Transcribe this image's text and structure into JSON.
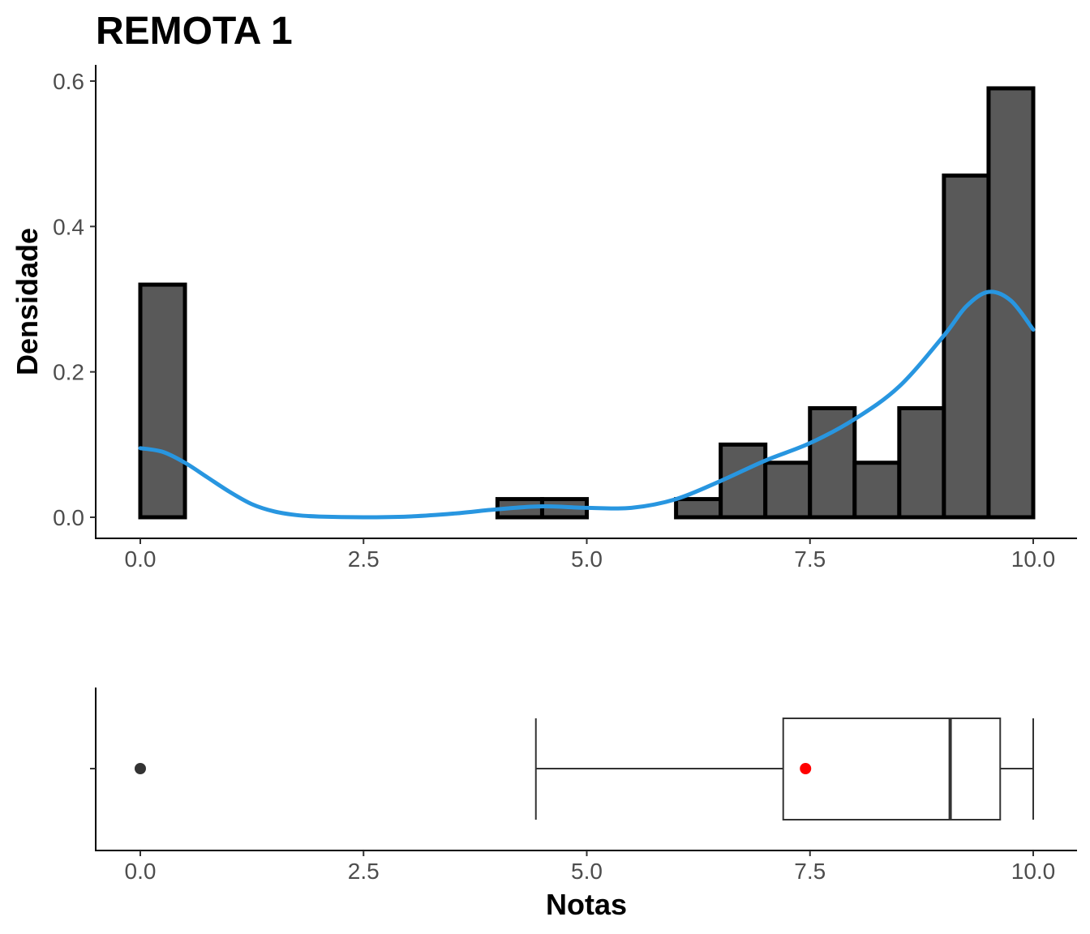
{
  "chart_data": [
    {
      "type": "histogram",
      "title": "REMOTA 1",
      "xlabel": "",
      "ylabel": "Densidade",
      "xlim": [
        -0.25,
        10.25
      ],
      "ylim": [
        0,
        0.62
      ],
      "x_ticks": [
        0,
        2.5,
        5,
        7.5,
        10
      ],
      "x_tick_labels": [
        "0.0",
        "2.5",
        "5.0",
        "7.5",
        "10.0"
      ],
      "y_ticks": [
        0,
        0.2,
        0.4,
        0.6
      ],
      "y_tick_labels": [
        "0.0",
        "0.2",
        "0.4",
        "0.6"
      ],
      "bin_width": 0.5,
      "bin_starts": [
        0,
        0.5,
        1,
        1.5,
        2,
        2.5,
        3,
        3.5,
        4,
        4.5,
        5,
        5.5,
        6,
        6.5,
        7,
        7.5,
        8,
        8.5,
        9,
        9.5
      ],
      "density": [
        0.32,
        0,
        0,
        0,
        0,
        0,
        0,
        0,
        0.025,
        0.025,
        0,
        0,
        0.025,
        0.1,
        0.075,
        0.15,
        0.075,
        0.15,
        0.47,
        0.59
      ],
      "bar_color": "#595959",
      "bar_border_color": "#000000",
      "density_curve": {
        "color": "#2896E0",
        "x": [
          0,
          0.25,
          0.5,
          0.75,
          1,
          1.25,
          1.5,
          1.75,
          2,
          2.5,
          3,
          3.5,
          4,
          4.5,
          5,
          5.5,
          6,
          6.5,
          7,
          7.5,
          8,
          8.5,
          9,
          9.25,
          9.5,
          9.75,
          10
        ],
        "y": [
          0.095,
          0.09,
          0.075,
          0.055,
          0.035,
          0.018,
          0.008,
          0.003,
          0.001,
          0,
          0.001,
          0.005,
          0.011,
          0.015,
          0.013,
          0.013,
          0.025,
          0.05,
          0.078,
          0.102,
          0.135,
          0.18,
          0.25,
          0.29,
          0.31,
          0.298,
          0.258
        ]
      }
    },
    {
      "type": "boxplot",
      "xlabel": "Notas",
      "xlim": [
        -0.25,
        10.25
      ],
      "x_ticks": [
        0,
        2.5,
        5,
        7.5,
        10
      ],
      "x_tick_labels": [
        "0.0",
        "2.5",
        "5.0",
        "7.5",
        "10.0"
      ],
      "whisker_low": 4.43,
      "q1": 7.2,
      "median": 9.07,
      "q3": 9.63,
      "whisker_high": 10,
      "mean": 7.45,
      "mean_color": "#FF0000",
      "outliers": [
        0
      ],
      "outlier_color": "#333333"
    }
  ]
}
